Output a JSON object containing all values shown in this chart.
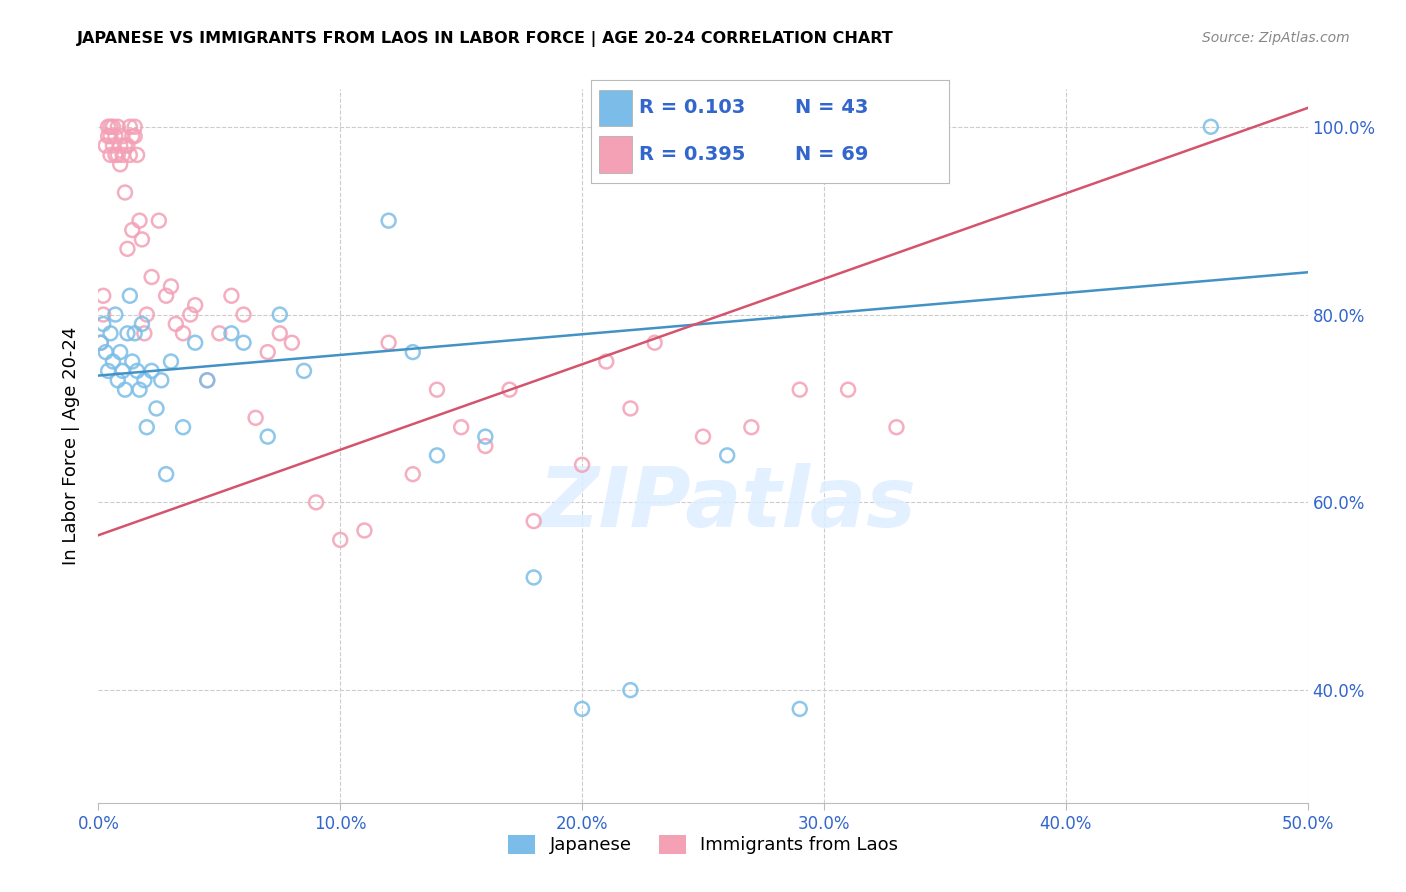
{
  "title": "JAPANESE VS IMMIGRANTS FROM LAOS IN LABOR FORCE | AGE 20-24 CORRELATION CHART",
  "source": "Source: ZipAtlas.com",
  "ylabel": "In Labor Force | Age 20-24",
  "xlabel_ticks": [
    "0.0%",
    "10.0%",
    "20.0%",
    "30.0%",
    "40.0%",
    "50.0%"
  ],
  "ylabel_ticks": [
    "40.0%",
    "60.0%",
    "80.0%",
    "100.0%"
  ],
  "xlim": [
    0.0,
    0.5
  ],
  "ylim": [
    0.28,
    1.04
  ],
  "watermark": "ZIPatlas",
  "legend_label1": "Japanese",
  "legend_label2": "Immigrants from Laos",
  "R1": 0.103,
  "N1": 43,
  "R2": 0.395,
  "N2": 69,
  "color_japanese": "#7bbde8",
  "color_laos": "#f4a0b5",
  "color_line_japanese": "#4292c6",
  "color_line_laos": "#d4546e",
  "jp_line_x0": 0.0,
  "jp_line_y0": 0.735,
  "jp_line_x1": 0.5,
  "jp_line_y1": 0.845,
  "laos_line_x0": 0.0,
  "laos_line_y0": 0.565,
  "laos_line_x1": 0.5,
  "laos_line_y1": 1.02,
  "japanese_x": [
    0.001,
    0.002,
    0.003,
    0.004,
    0.005,
    0.006,
    0.007,
    0.008,
    0.009,
    0.01,
    0.011,
    0.012,
    0.013,
    0.014,
    0.015,
    0.016,
    0.017,
    0.018,
    0.019,
    0.02,
    0.022,
    0.024,
    0.026,
    0.028,
    0.03,
    0.035,
    0.04,
    0.045,
    0.055,
    0.06,
    0.07,
    0.075,
    0.085,
    0.12,
    0.13,
    0.14,
    0.16,
    0.18,
    0.2,
    0.22,
    0.26,
    0.29,
    0.46
  ],
  "japanese_y": [
    0.77,
    0.79,
    0.76,
    0.74,
    0.78,
    0.75,
    0.8,
    0.73,
    0.76,
    0.74,
    0.72,
    0.78,
    0.82,
    0.75,
    0.78,
    0.74,
    0.72,
    0.79,
    0.73,
    0.68,
    0.74,
    0.7,
    0.73,
    0.63,
    0.75,
    0.68,
    0.77,
    0.73,
    0.78,
    0.77,
    0.67,
    0.8,
    0.74,
    0.9,
    0.76,
    0.65,
    0.67,
    0.52,
    0.38,
    0.4,
    0.65,
    0.38,
    1.0
  ],
  "laos_x": [
    0.001,
    0.002,
    0.002,
    0.003,
    0.004,
    0.004,
    0.005,
    0.005,
    0.005,
    0.006,
    0.006,
    0.007,
    0.007,
    0.008,
    0.008,
    0.009,
    0.009,
    0.01,
    0.01,
    0.011,
    0.011,
    0.012,
    0.012,
    0.013,
    0.013,
    0.014,
    0.014,
    0.015,
    0.015,
    0.016,
    0.017,
    0.018,
    0.019,
    0.02,
    0.022,
    0.025,
    0.028,
    0.03,
    0.032,
    0.035,
    0.038,
    0.04,
    0.045,
    0.05,
    0.055,
    0.06,
    0.065,
    0.07,
    0.075,
    0.08,
    0.09,
    0.1,
    0.11,
    0.12,
    0.13,
    0.14,
    0.15,
    0.16,
    0.17,
    0.18,
    0.2,
    0.21,
    0.22,
    0.23,
    0.25,
    0.27,
    0.29,
    0.31,
    0.33
  ],
  "laos_y": [
    0.77,
    0.8,
    0.82,
    0.98,
    0.99,
    1.0,
    0.97,
    0.99,
    1.0,
    0.98,
    1.0,
    0.97,
    0.99,
    1.0,
    0.97,
    0.98,
    0.96,
    0.99,
    0.97,
    0.98,
    0.93,
    0.87,
    0.98,
    1.0,
    0.97,
    0.99,
    0.89,
    1.0,
    0.99,
    0.97,
    0.9,
    0.88,
    0.78,
    0.8,
    0.84,
    0.9,
    0.82,
    0.83,
    0.79,
    0.78,
    0.8,
    0.81,
    0.73,
    0.78,
    0.82,
    0.8,
    0.69,
    0.76,
    0.78,
    0.77,
    0.6,
    0.56,
    0.57,
    0.77,
    0.63,
    0.72,
    0.68,
    0.66,
    0.72,
    0.58,
    0.64,
    0.75,
    0.7,
    0.77,
    0.67,
    0.68,
    0.72,
    0.72,
    0.68
  ]
}
